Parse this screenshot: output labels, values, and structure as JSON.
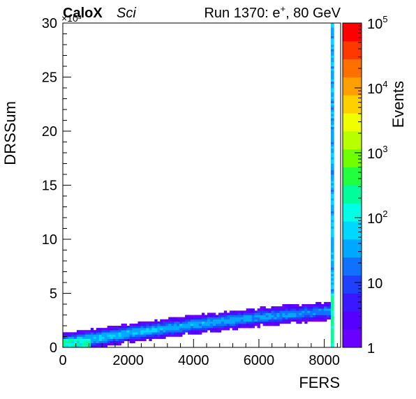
{
  "chart_data": {
    "type": "heatmap",
    "header": {
      "experiment": "CaloX",
      "tag": "Sci",
      "run_prefix": "Run 1370: e",
      "run_sup": "+",
      "run_suffix": ", 80 GeV"
    },
    "xlabel": "FERS",
    "ylabel": "DRSSum",
    "y_multiplier": "×10³",
    "zlabel": "Events",
    "xlim": [
      0,
      8500
    ],
    "ylim": [
      0,
      30000
    ],
    "zlim": [
      1,
      100000
    ],
    "z_scale": "log",
    "x_ticks": [
      "0",
      "2000",
      "4000",
      "6000",
      "8000"
    ],
    "y_ticks": [
      "0",
      "5",
      "10",
      "15",
      "20",
      "25",
      "30"
    ],
    "z_ticks": [
      {
        "base": "1",
        "exp": ""
      },
      {
        "base": "10",
        "exp": ""
      },
      {
        "base": "10",
        "exp": "2"
      },
      {
        "base": "10",
        "exp": "3"
      },
      {
        "base": "10",
        "exp": "4"
      },
      {
        "base": "10",
        "exp": "5"
      }
    ],
    "features": [
      {
        "name": "main band",
        "x_range": [
          0,
          8200
        ],
        "y_center_at_x": [
          [
            0,
            400
          ],
          [
            2000,
            1300
          ],
          [
            4000,
            2100
          ],
          [
            6000,
            2800
          ],
          [
            8200,
            3400
          ]
        ],
        "band_halfwidth_y": 900
      },
      {
        "name": "low-x cluster",
        "x_range": [
          0,
          800
        ],
        "y_range": [
          0,
          700
        ],
        "peak_events": 500
      },
      {
        "name": "saturation column",
        "x_range": [
          8200,
          8300
        ],
        "y_range": [
          0,
          30000
        ],
        "peak_events": 300
      }
    ],
    "grid": false
  }
}
